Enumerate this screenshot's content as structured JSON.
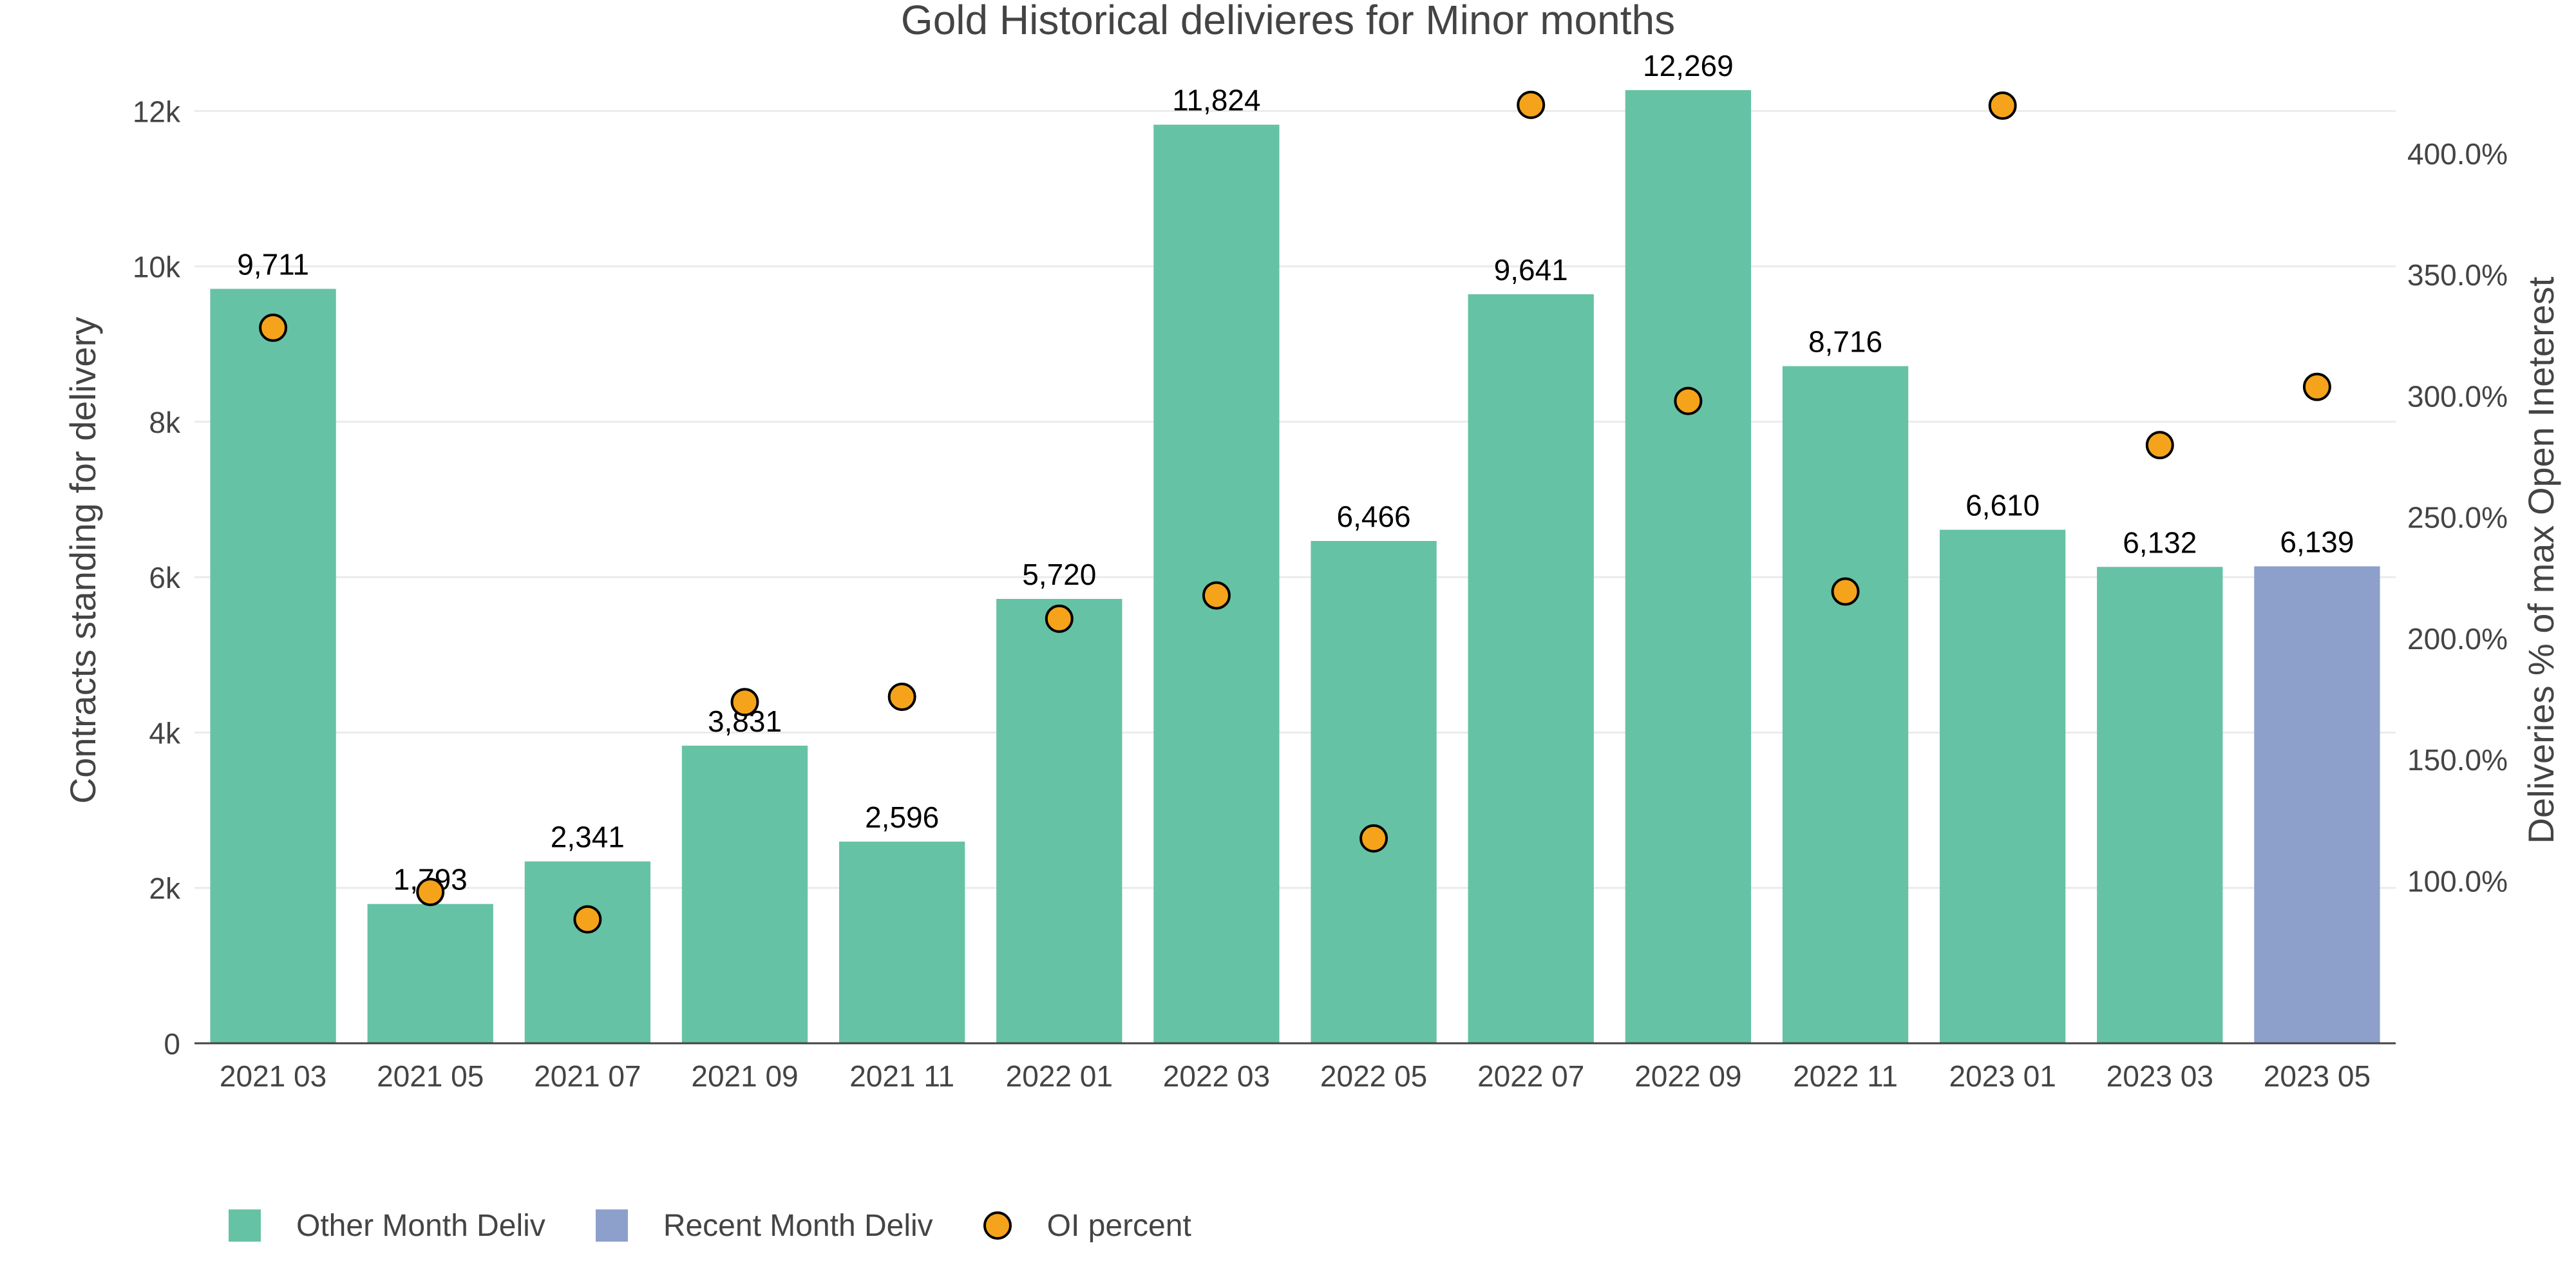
{
  "chart_data": {
    "type": "bar",
    "title": "Gold Historical delivieres for Minor months",
    "ylabel": "Contracts standing for delivery",
    "y2label": "Deliveries % of max Open Ineterest",
    "categories": [
      "2021 03",
      "2021 05",
      "2021 07",
      "2021 09",
      "2021 11",
      "2022 01",
      "2022 03",
      "2022 05",
      "2022 07",
      "2022 09",
      "2022 11",
      "2023 01",
      "2023 03",
      "2023 05"
    ],
    "series": [
      {
        "name": "Other Month Deliv",
        "kind": "bar",
        "color": "#66c2a5",
        "values": [
          9711,
          1793,
          2341,
          3831,
          2596,
          5720,
          11824,
          6466,
          9641,
          12269,
          8716,
          6610,
          6132,
          null
        ],
        "labels": [
          "9,711",
          "1,793",
          "2,341",
          "3,831",
          "2,596",
          "5,720",
          "11,824",
          "6,466",
          "9,641",
          "12,269",
          "8,716",
          "6,610",
          "6,132",
          ""
        ]
      },
      {
        "name": "Recent Month Deliv",
        "kind": "bar",
        "color": "#8da0cb",
        "values": [
          null,
          null,
          null,
          null,
          null,
          null,
          null,
          null,
          null,
          null,
          null,
          null,
          null,
          6139
        ],
        "labels": [
          "",
          "",
          "",
          "",
          "",
          "",
          "",
          "",
          "",
          "",
          "",
          "",
          "",
          "6,139"
        ]
      },
      {
        "name": "OI percent",
        "kind": "scatter",
        "axis": "y2",
        "color": "#f5a31a",
        "values": [
          328.0,
          95.3,
          84.0,
          173.6,
          175.8,
          208.0,
          217.6,
          117.4,
          419.9,
          297.8,
          219.2,
          419.6,
          279.6,
          303.6
        ]
      }
    ],
    "yaxis": {
      "range": [
        0,
        12600
      ],
      "ticks": [
        0,
        2000,
        4000,
        6000,
        8000,
        10000,
        12000
      ],
      "tick_labels": [
        "0",
        "2k",
        "4k",
        "6k",
        "8k",
        "10k",
        "12k"
      ]
    },
    "y2axis": {
      "range": [
        32.9,
        436.6
      ],
      "ticks": [
        100,
        150,
        200,
        250,
        300,
        350,
        400
      ],
      "tick_labels": [
        "100.0%",
        "150.0%",
        "200.0%",
        "250.0%",
        "300.0%",
        "350.0%",
        "400.0%"
      ]
    },
    "grid": true,
    "legend_position": "bottom-left"
  },
  "colors": {
    "grid": "#ebebeb",
    "axis_line": "#444444",
    "text": "#444444",
    "data_label": "#000000",
    "marker_edge": "#000000"
  }
}
